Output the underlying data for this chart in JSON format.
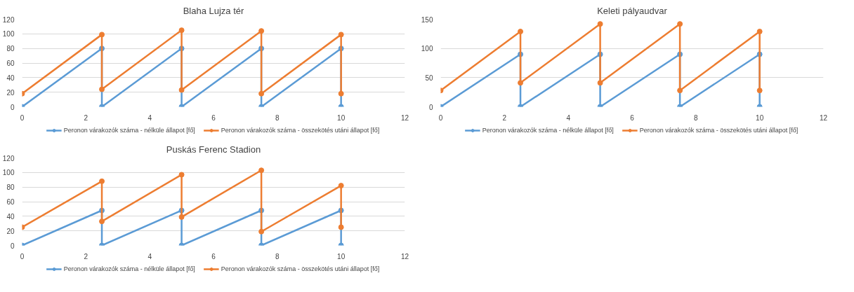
{
  "chart_data": [
    {
      "type": "line",
      "title": "Blaha Lujza tér",
      "x": [
        0,
        2.5,
        2.5,
        5,
        5,
        7.5,
        7.5,
        10,
        10
      ],
      "xlim": [
        0,
        12
      ],
      "xticks": [
        0,
        2,
        4,
        6,
        8,
        10,
        12
      ],
      "ylim": [
        0,
        120
      ],
      "yticks": [
        0,
        20,
        40,
        60,
        80,
        100,
        120
      ],
      "grid": "y",
      "legend": "bottom",
      "marker": "circle",
      "series": [
        {
          "name": "Peronon várakozók száma - nélküle állapot [fő]",
          "color": "#5b9bd5",
          "values": [
            0,
            80,
            0,
            80,
            0,
            80,
            0,
            80,
            0
          ]
        },
        {
          "name": "Peronon várakozók száma - összekötés utáni állapot [fő]",
          "color": "#ed7d31",
          "values": [
            18,
            99,
            24,
            105,
            23,
            104,
            18,
            99,
            18
          ]
        }
      ]
    },
    {
      "type": "line",
      "title": "Keleti pályaudvar",
      "x": [
        0,
        2.5,
        2.5,
        5,
        5,
        7.5,
        7.5,
        10,
        10
      ],
      "xlim": [
        0,
        12
      ],
      "xticks": [
        0,
        2,
        4,
        6,
        8,
        10,
        12
      ],
      "ylim": [
        0,
        150
      ],
      "yticks": [
        0,
        50,
        100,
        150
      ],
      "grid": "y",
      "legend": "bottom",
      "marker": "circle",
      "series": [
        {
          "name": "Peronon várakozók száma - nélküle állapot [fő]",
          "color": "#5b9bd5",
          "values": [
            0,
            90,
            0,
            90,
            0,
            90,
            0,
            90,
            0
          ]
        },
        {
          "name": "Peronon várakozók száma - összekötés utáni állapot [fő]",
          "color": "#ed7d31",
          "values": [
            28,
            129,
            41,
            142,
            41,
            142,
            28,
            129,
            28
          ]
        }
      ]
    },
    {
      "type": "line",
      "title": "Puskás Ferenc Stadion",
      "x": [
        0,
        2.5,
        2.5,
        5,
        5,
        7.5,
        7.5,
        10,
        10
      ],
      "xlim": [
        0,
        12
      ],
      "xticks": [
        0,
        2,
        4,
        6,
        8,
        10,
        12
      ],
      "ylim": [
        0,
        120
      ],
      "yticks": [
        0,
        20,
        40,
        60,
        80,
        100,
        120
      ],
      "grid": "y",
      "legend": "bottom",
      "marker": "circle",
      "series": [
        {
          "name": "Peronon várakozók száma - nélküle állapot [fő]",
          "color": "#5b9bd5",
          "values": [
            0,
            48,
            0,
            48,
            0,
            48,
            0,
            48,
            0
          ]
        },
        {
          "name": "Peronon várakozók száma - összekötés utáni állapot [fő]",
          "color": "#ed7d31",
          "values": [
            25,
            88,
            33,
            97,
            39,
            103,
            19,
            82,
            25
          ]
        }
      ]
    }
  ]
}
